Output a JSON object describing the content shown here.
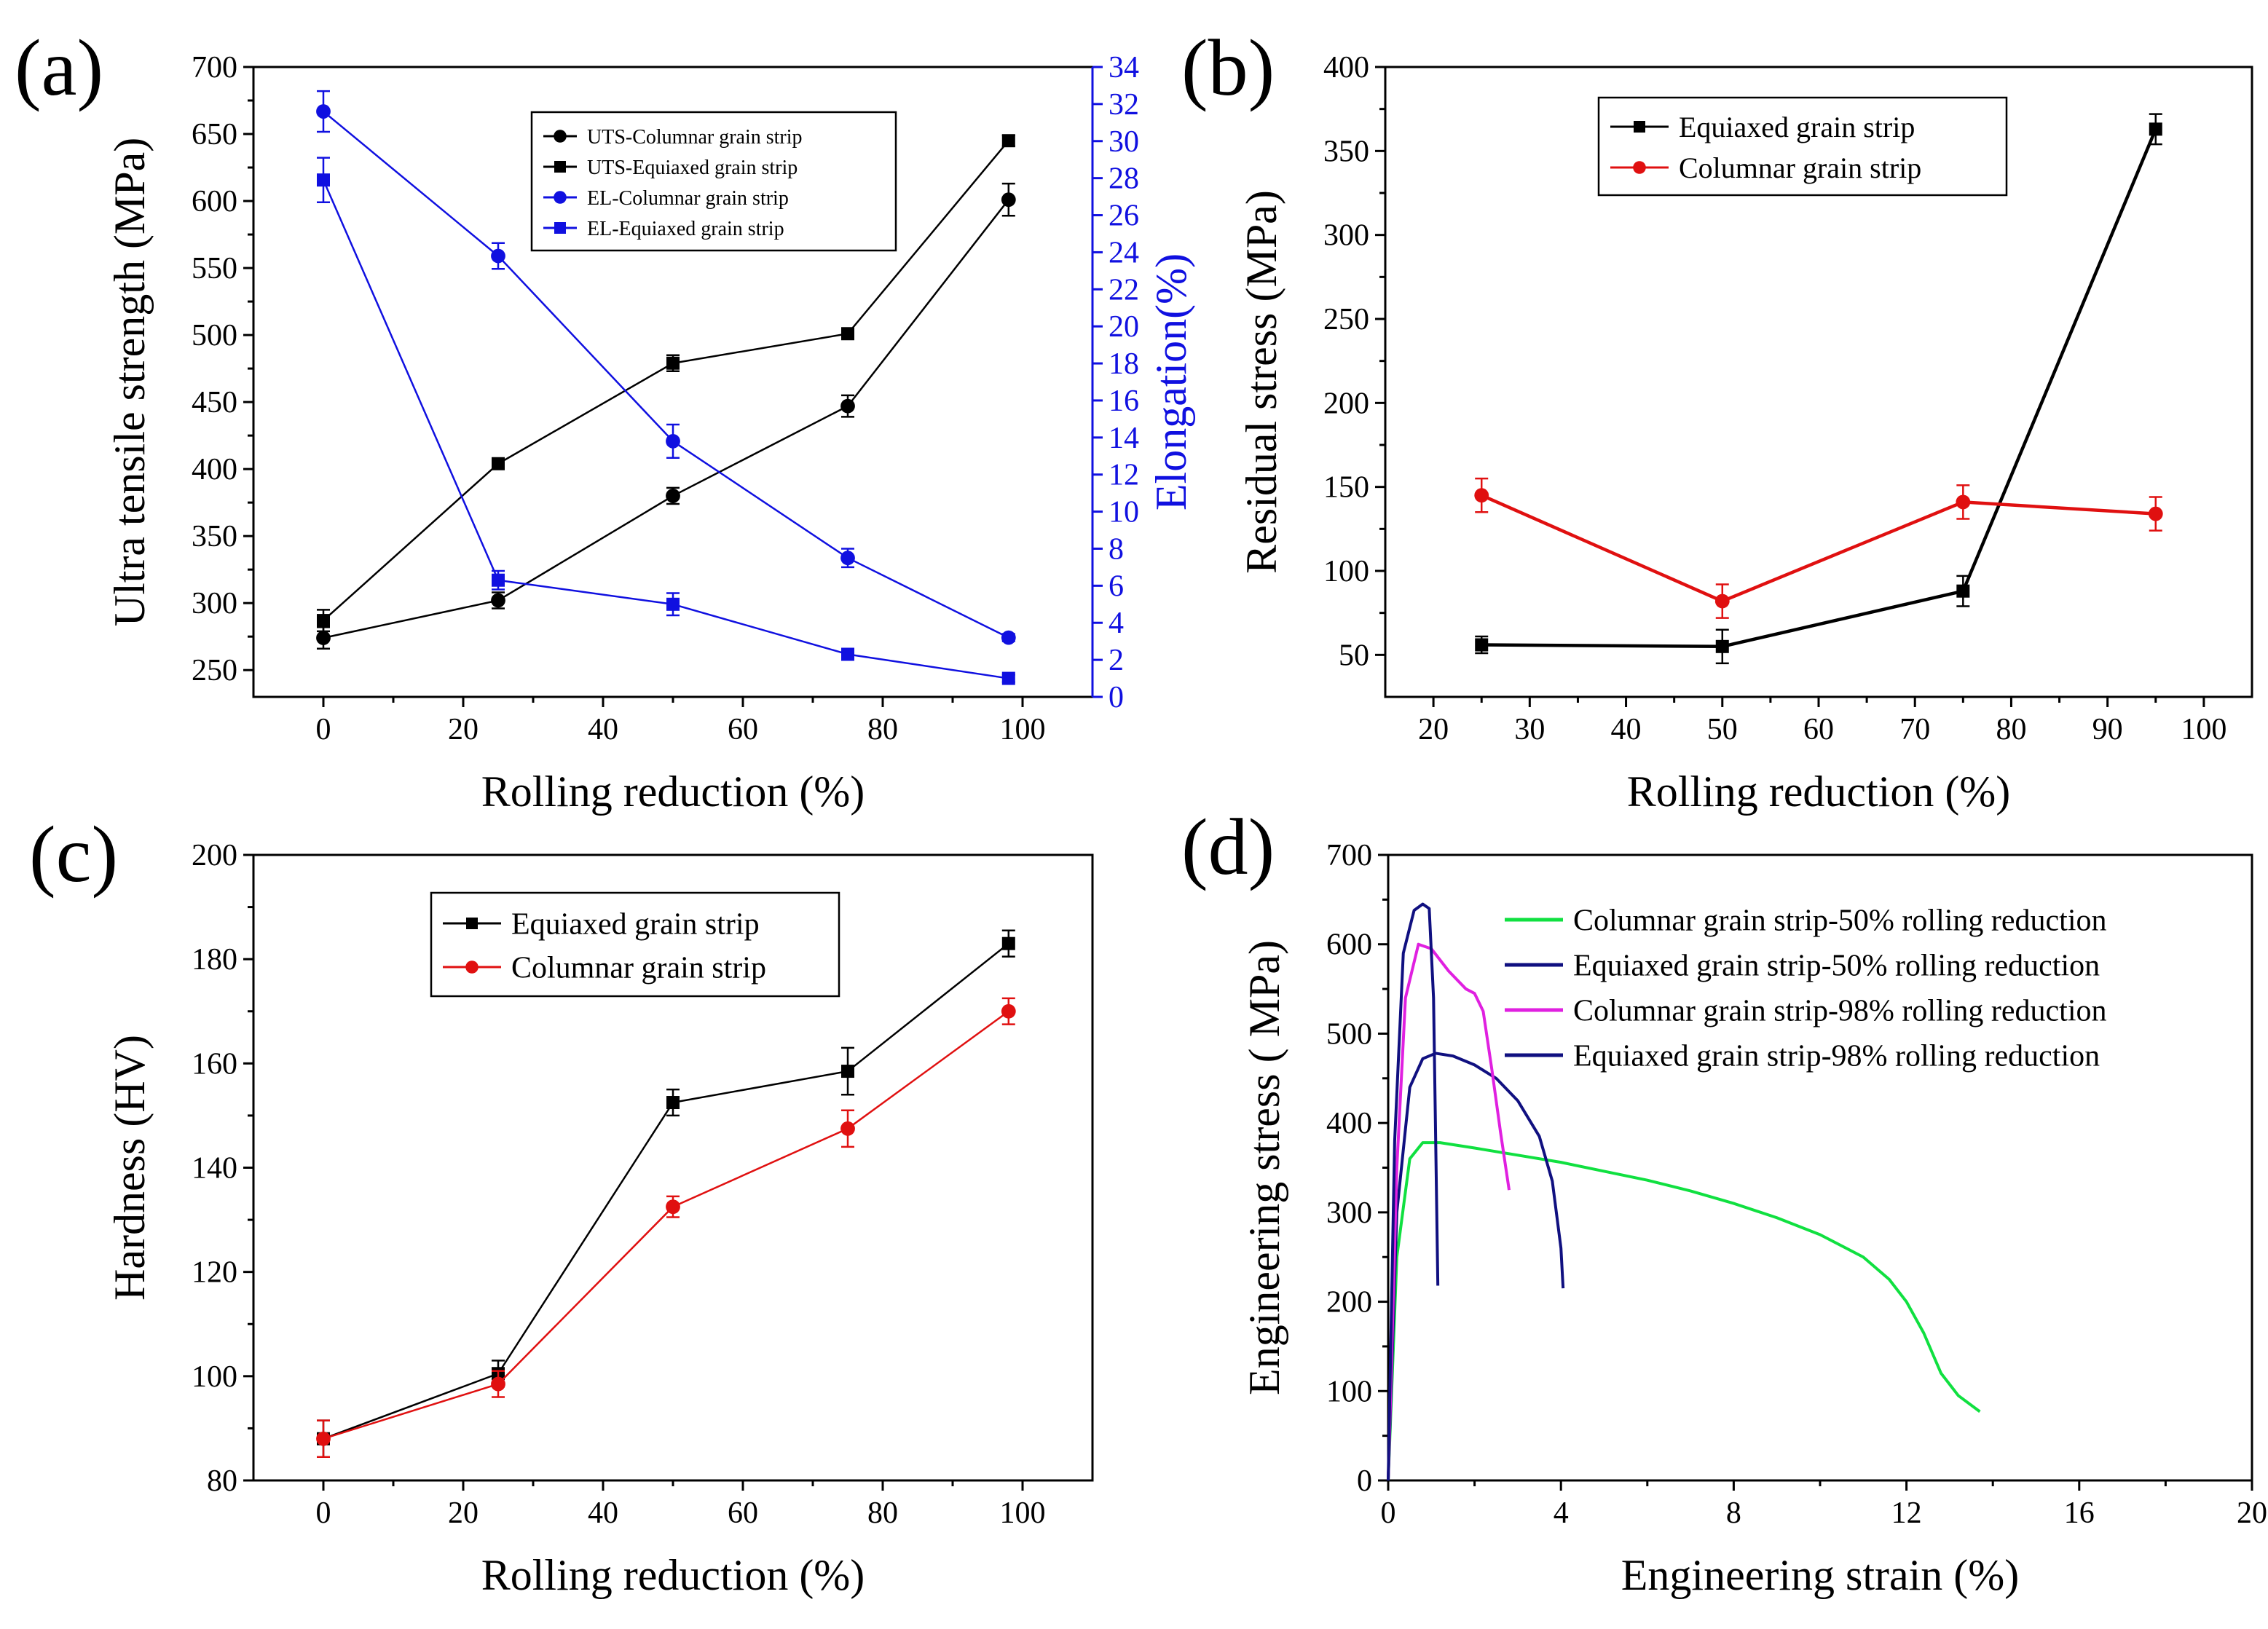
{
  "chart_data": [
    {
      "id": "a",
      "type": "line",
      "panel_label": "(a)",
      "xlabel": "Rolling reduction (%)",
      "ylabel": "Ultra tensile strength (MPa)",
      "y2label": "Elongation(%)",
      "xlim": [
        -10,
        110
      ],
      "ylim": [
        230,
        700
      ],
      "y2lim": [
        0,
        34
      ],
      "xticks": [
        0,
        20,
        40,
        60,
        80,
        100
      ],
      "yticks": [
        250,
        300,
        350,
        400,
        450,
        500,
        550,
        600,
        650,
        700
      ],
      "y2ticks": [
        0,
        2,
        4,
        6,
        8,
        10,
        12,
        14,
        16,
        18,
        20,
        22,
        24,
        26,
        28,
        30,
        32,
        34
      ],
      "legend_position": "top-center",
      "series": [
        {
          "name": "UTS-Columnar grain strip",
          "axis": "left",
          "color": "#000000",
          "marker": "circle",
          "x": [
            0,
            25,
            50,
            75,
            98
          ],
          "values": [
            274,
            302,
            380,
            447,
            601
          ],
          "errors": [
            8,
            6,
            6,
            8,
            12
          ]
        },
        {
          "name": "UTS-Equiaxed grain strip",
          "axis": "left",
          "color": "#000000",
          "marker": "square",
          "x": [
            0,
            25,
            50,
            75,
            98
          ],
          "values": [
            287,
            404,
            479,
            501,
            645
          ],
          "errors": [
            8,
            4,
            6,
            4,
            4
          ]
        },
        {
          "name": "EL-Columnar grain strip",
          "axis": "right",
          "color": "#1010e0",
          "marker": "circle",
          "x": [
            0,
            25,
            50,
            75,
            98
          ],
          "values": [
            31.6,
            23.8,
            13.8,
            7.5,
            3.2
          ],
          "errors": [
            1.1,
            0.7,
            0.9,
            0.5,
            0.2
          ]
        },
        {
          "name": "EL-Equiaxed grain strip",
          "axis": "right",
          "color": "#1010e0",
          "marker": "square",
          "x": [
            0,
            25,
            50,
            75,
            98
          ],
          "values": [
            27.9,
            6.3,
            5.0,
            2.3,
            1.0
          ],
          "errors": [
            1.2,
            0.5,
            0.6,
            0.3,
            0.2
          ]
        }
      ]
    },
    {
      "id": "b",
      "type": "line",
      "panel_label": "(b)",
      "xlabel": "Rolling reduction (%)",
      "ylabel": "Residual stress (MPa)",
      "xlim": [
        15,
        105
      ],
      "ylim": [
        25,
        400
      ],
      "xticks": [
        20,
        30,
        40,
        50,
        60,
        70,
        80,
        90,
        100
      ],
      "yticks": [
        50,
        100,
        150,
        200,
        250,
        300,
        350,
        400
      ],
      "legend_position": "top-center",
      "series": [
        {
          "name": "Equiaxed grain strip",
          "color": "#000000",
          "marker": "square",
          "x": [
            25,
            50,
            75,
            95
          ],
          "values": [
            56,
            55,
            88,
            363
          ],
          "errors": [
            5,
            10,
            9,
            9
          ]
        },
        {
          "name": "Columnar grain strip",
          "color": "#e01010",
          "marker": "circle",
          "x": [
            25,
            50,
            75,
            95
          ],
          "values": [
            145,
            82,
            141,
            134
          ],
          "errors": [
            10,
            10,
            10,
            10
          ]
        }
      ]
    },
    {
      "id": "c",
      "type": "line",
      "panel_label": "(c)",
      "xlabel": "Rolling reduction (%)",
      "ylabel": "Hardness (HV)",
      "xlim": [
        -10,
        110
      ],
      "ylim": [
        80,
        200
      ],
      "xticks": [
        0,
        20,
        40,
        60,
        80,
        100
      ],
      "yticks": [
        80,
        100,
        120,
        140,
        160,
        180,
        200
      ],
      "legend_position": "top-center",
      "series": [
        {
          "name": "Equiaxed grain strip",
          "color": "#000000",
          "marker": "square",
          "x": [
            0,
            25,
            50,
            75,
            98
          ],
          "values": [
            88,
            100.5,
            152.5,
            158.5,
            183
          ],
          "errors": [
            3.5,
            2.5,
            2.5,
            4.5,
            2.5
          ]
        },
        {
          "name": "Columnar grain strip",
          "color": "#e01010",
          "marker": "circle",
          "x": [
            0,
            25,
            50,
            75,
            98
          ],
          "values": [
            88,
            98.5,
            132.5,
            147.5,
            170
          ],
          "errors": [
            3.5,
            2.5,
            2,
            3.5,
            2.5
          ]
        }
      ]
    },
    {
      "id": "d",
      "type": "line",
      "panel_label": "(d)",
      "xlabel": "Engineering strain (%)",
      "ylabel": "Engineering stress ( MPa)",
      "xlim": [
        0,
        20
      ],
      "ylim": [
        0,
        700
      ],
      "xticks": [
        0,
        4,
        8,
        12,
        16,
        20
      ],
      "yticks": [
        0,
        100,
        200,
        300,
        400,
        500,
        600,
        700
      ],
      "legend_position": "top-right",
      "series": [
        {
          "name": "Columnar grain strip-50% rolling reduction",
          "color": "#10e040",
          "x": [
            0,
            0.2,
            0.5,
            0.8,
            1.2,
            2,
            3,
            4,
            5,
            6,
            7,
            8,
            9,
            10,
            11,
            11.6,
            12,
            12.4,
            12.8,
            13.2,
            13.7
          ],
          "values": [
            0,
            250,
            360,
            378,
            378,
            372,
            364,
            356,
            346,
            336,
            324,
            310,
            294,
            275,
            250,
            225,
            200,
            165,
            120,
            95,
            77
          ]
        },
        {
          "name": "Equiaxed grain strip-50% rolling reduction",
          "color": "#101080",
          "x": [
            0,
            0.2,
            0.5,
            0.8,
            1.1,
            1.5,
            2,
            2.5,
            3,
            3.5,
            3.8,
            4.0,
            4.05
          ],
          "values": [
            0,
            300,
            440,
            472,
            478,
            475,
            465,
            450,
            425,
            385,
            335,
            260,
            215
          ]
        },
        {
          "name": "Columnar grain strip-98% rolling reduction",
          "color": "#e020e0",
          "x": [
            0,
            0.2,
            0.4,
            0.7,
            1.0,
            1.4,
            1.8,
            2.0,
            2.2,
            2.4,
            2.6,
            2.8
          ],
          "values": [
            0,
            350,
            540,
            600,
            595,
            570,
            550,
            545,
            525,
            460,
            390,
            325
          ]
        },
        {
          "name": "Equiaxed grain strip-98% rolling reduction",
          "color": "#101080",
          "x": [
            0,
            0.15,
            0.35,
            0.6,
            0.8,
            0.95,
            1.05,
            1.1,
            1.15
          ],
          "values": [
            0,
            380,
            590,
            638,
            645,
            640,
            540,
            380,
            218
          ]
        }
      ]
    }
  ]
}
